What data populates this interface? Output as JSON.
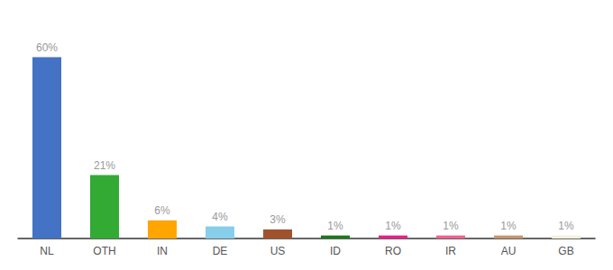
{
  "chart_data": {
    "type": "bar",
    "categories": [
      "NL",
      "OTH",
      "IN",
      "DE",
      "US",
      "ID",
      "RO",
      "IR",
      "AU",
      "GB"
    ],
    "values": [
      60,
      21,
      6,
      4,
      3,
      1,
      1,
      1,
      1,
      1
    ],
    "value_labels": [
      "60%",
      "21%",
      "6%",
      "4%",
      "3%",
      "1%",
      "1%",
      "1%",
      "1%",
      "1%"
    ],
    "colors": [
      "#4472C4",
      "#33AA33",
      "#FFA500",
      "#87CEEB",
      "#A0522D",
      "#1A7A1A",
      "#E91E8C",
      "#F06090",
      "#C8956A",
      "#F5F0DC"
    ],
    "ylim": [
      0,
      70
    ],
    "data_labels": true,
    "tick_labels": "x",
    "grid": false
  }
}
